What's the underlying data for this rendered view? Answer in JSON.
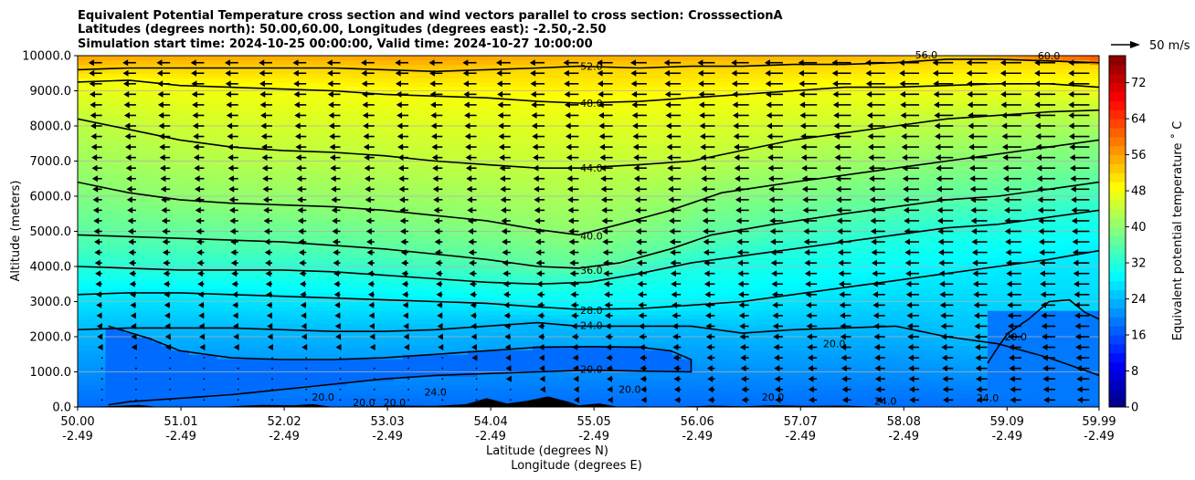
{
  "chart_data": {
    "type": "heatmap",
    "title_lines": [
      "Equivalent Potential Temperature cross section and wind vectors parallel to cross section: CrosssectionA",
      "Latitudes (degrees north): 50.00,60.00, Longitudes (degrees east): -2.50,-2.50",
      "Simulation start time: 2024-10-25 00:00:00, Valid time: 2024-10-27 10:00:00"
    ],
    "xlabel_lat": "Latitude (degrees N)",
    "xlabel_lon": "Longitude (degrees E)",
    "ylabel": "Altitude (meters)",
    "colorbar_label": "Equivalent potential temperature ˚ C",
    "quiver_key_label": "50 m/s",
    "xlim": [
      50.0,
      59.99
    ],
    "ylim": [
      0,
      10000
    ],
    "x_ticks": [
      {
        "lat": "50.00",
        "lon": "-2.49",
        "value": 50.0
      },
      {
        "lat": "51.01",
        "lon": "-2.49",
        "value": 51.01
      },
      {
        "lat": "52.02",
        "lon": "-2.49",
        "value": 52.02
      },
      {
        "lat": "53.03",
        "lon": "-2.49",
        "value": 53.03
      },
      {
        "lat": "54.04",
        "lon": "-2.49",
        "value": 54.04
      },
      {
        "lat": "55.05",
        "lon": "-2.49",
        "value": 55.05
      },
      {
        "lat": "56.06",
        "lon": "-2.49",
        "value": 56.06
      },
      {
        "lat": "57.07",
        "lon": "-2.49",
        "value": 57.07
      },
      {
        "lat": "58.08",
        "lon": "-2.49",
        "value": 58.08
      },
      {
        "lat": "59.09",
        "lon": "-2.49",
        "value": 59.09
      },
      {
        "lat": "59.99",
        "lon": "-2.49",
        "value": 59.99
      }
    ],
    "y_ticks": [
      {
        "label": "0.0",
        "value": 0
      },
      {
        "label": "1000.0",
        "value": 1000
      },
      {
        "label": "2000.0",
        "value": 2000
      },
      {
        "label": "3000.0",
        "value": 3000
      },
      {
        "label": "4000.0",
        "value": 4000
      },
      {
        "label": "5000.0",
        "value": 5000
      },
      {
        "label": "6000.0",
        "value": 6000
      },
      {
        "label": "7000.0",
        "value": 7000
      },
      {
        "label": "8000.0",
        "value": 8000
      },
      {
        "label": "9000.0",
        "value": 9000
      },
      {
        "label": "10000.0",
        "value": 10000
      }
    ],
    "colorbar_ticks": [
      {
        "label": "0",
        "value": 0
      },
      {
        "label": "8",
        "value": 8
      },
      {
        "label": "16",
        "value": 16
      },
      {
        "label": "24",
        "value": 24
      },
      {
        "label": "32",
        "value": 32
      },
      {
        "label": "40",
        "value": 40
      },
      {
        "label": "48",
        "value": 48
      },
      {
        "label": "56",
        "value": 56
      },
      {
        "label": "64",
        "value": 64
      },
      {
        "label": "72",
        "value": 72
      }
    ],
    "colorbar_range": [
      0,
      78
    ],
    "grid": "horizontal",
    "contours": [
      {
        "level": 20,
        "label": "20.0",
        "label_at": [
          54.9,
          1080
        ],
        "points": [
          [
            50.3,
            2300
          ],
          [
            50.7,
            1950
          ],
          [
            51.0,
            1600
          ],
          [
            51.5,
            1400
          ],
          [
            52.0,
            1350
          ],
          [
            52.5,
            1350
          ],
          [
            53.0,
            1400
          ],
          [
            53.5,
            1500
          ],
          [
            54.0,
            1600
          ],
          [
            54.5,
            1700
          ],
          [
            55.0,
            1720
          ],
          [
            55.5,
            1700
          ],
          [
            55.8,
            1600
          ],
          [
            56.0,
            1350
          ],
          [
            56.0,
            1000
          ],
          [
            55.5,
            1020
          ],
          [
            55.0,
            1050
          ],
          [
            54.5,
            1000
          ],
          [
            54.0,
            950
          ],
          [
            53.5,
            900
          ],
          [
            53.0,
            800
          ],
          [
            52.5,
            650
          ],
          [
            52.0,
            500
          ],
          [
            51.5,
            350
          ],
          [
            51.0,
            250
          ],
          [
            50.5,
            150
          ],
          [
            50.3,
            60
          ]
        ]
      },
      {
        "level": 20,
        "label": "20.0",
        "label_at": [
          59.05,
          2000
        ],
        "points": [
          [
            58.9,
            1250
          ],
          [
            59.0,
            1700
          ],
          [
            59.1,
            2100
          ],
          [
            59.3,
            2500
          ],
          [
            59.5,
            3000
          ],
          [
            59.7,
            3050
          ],
          [
            59.85,
            2700
          ],
          [
            59.99,
            2500
          ]
        ]
      },
      {
        "level": 24,
        "label": "24.0",
        "label_at": [
          54.9,
          2320
        ],
        "points": [
          [
            50.0,
            2200
          ],
          [
            50.5,
            2250
          ],
          [
            51.0,
            2250
          ],
          [
            51.5,
            2250
          ],
          [
            52.0,
            2200
          ],
          [
            52.5,
            2150
          ],
          [
            53.0,
            2150
          ],
          [
            53.5,
            2200
          ],
          [
            54.0,
            2300
          ],
          [
            54.5,
            2400
          ],
          [
            54.9,
            2300
          ],
          [
            55.5,
            2300
          ],
          [
            56.0,
            2300
          ],
          [
            56.5,
            2100
          ],
          [
            57.0,
            2200
          ],
          [
            57.5,
            2250
          ],
          [
            58.0,
            2300
          ],
          [
            58.5,
            2000
          ],
          [
            59.0,
            1800
          ],
          [
            59.5,
            1400
          ],
          [
            59.99,
            900
          ]
        ]
      },
      {
        "level": 28,
        "label": "28.0",
        "label_at": [
          54.9,
          2750
        ],
        "points": [
          [
            50.0,
            3200
          ],
          [
            50.5,
            3250
          ],
          [
            51.0,
            3250
          ],
          [
            51.5,
            3200
          ],
          [
            52.0,
            3150
          ],
          [
            52.5,
            3100
          ],
          [
            53.0,
            3050
          ],
          [
            53.5,
            3000
          ],
          [
            54.0,
            2950
          ],
          [
            54.5,
            2850
          ],
          [
            54.9,
            2780
          ],
          [
            55.5,
            2800
          ],
          [
            56.0,
            2900
          ],
          [
            56.5,
            3000
          ],
          [
            57.0,
            3200
          ],
          [
            57.5,
            3400
          ],
          [
            58.0,
            3600
          ],
          [
            58.5,
            3800
          ],
          [
            59.0,
            4000
          ],
          [
            59.5,
            4200
          ],
          [
            59.99,
            4450
          ]
        ]
      },
      {
        "level": 32,
        "label": "",
        "label_at": [
          0,
          0
        ],
        "points": [
          [
            50.0,
            4000
          ],
          [
            50.5,
            3950
          ],
          [
            51.0,
            3900
          ],
          [
            51.5,
            3900
          ],
          [
            52.0,
            3900
          ],
          [
            52.5,
            3850
          ],
          [
            53.0,
            3750
          ],
          [
            53.5,
            3650
          ],
          [
            54.0,
            3550
          ],
          [
            54.5,
            3500
          ],
          [
            55.0,
            3550
          ],
          [
            55.5,
            3800
          ],
          [
            56.0,
            4100
          ],
          [
            56.5,
            4300
          ],
          [
            57.0,
            4500
          ],
          [
            57.5,
            4700
          ],
          [
            58.0,
            4900
          ],
          [
            58.5,
            5100
          ],
          [
            59.0,
            5200
          ],
          [
            59.5,
            5400
          ],
          [
            59.99,
            5600
          ]
        ]
      },
      {
        "level": 36,
        "label": "36.0",
        "label_at": [
          54.9,
          3900
        ],
        "points": [
          [
            50.0,
            4900
          ],
          [
            50.5,
            4850
          ],
          [
            51.0,
            4800
          ],
          [
            51.5,
            4750
          ],
          [
            52.0,
            4700
          ],
          [
            52.5,
            4600
          ],
          [
            53.0,
            4500
          ],
          [
            53.5,
            4350
          ],
          [
            54.0,
            4200
          ],
          [
            54.5,
            4000
          ],
          [
            54.9,
            3950
          ],
          [
            55.3,
            4100
          ],
          [
            55.8,
            4500
          ],
          [
            56.2,
            4900
          ],
          [
            56.8,
            5200
          ],
          [
            57.5,
            5500
          ],
          [
            58.0,
            5700
          ],
          [
            58.5,
            5900
          ],
          [
            59.0,
            6000
          ],
          [
            59.5,
            6200
          ],
          [
            59.99,
            6400
          ]
        ]
      },
      {
        "level": 40,
        "label": "40.0",
        "label_at": [
          54.9,
          4870
        ],
        "points": [
          [
            50.0,
            6400
          ],
          [
            50.5,
            6100
          ],
          [
            51.0,
            5900
          ],
          [
            51.5,
            5800
          ],
          [
            52.0,
            5750
          ],
          [
            52.5,
            5700
          ],
          [
            53.0,
            5600
          ],
          [
            53.5,
            5450
          ],
          [
            54.0,
            5300
          ],
          [
            54.5,
            5050
          ],
          [
            54.9,
            4900
          ],
          [
            55.3,
            5200
          ],
          [
            55.8,
            5600
          ],
          [
            56.3,
            6100
          ],
          [
            57.0,
            6400
          ],
          [
            57.5,
            6600
          ],
          [
            58.0,
            6800
          ],
          [
            58.5,
            7000
          ],
          [
            59.0,
            7200
          ],
          [
            59.5,
            7400
          ],
          [
            59.99,
            7600
          ]
        ]
      },
      {
        "level": 44,
        "label": "44.0",
        "label_at": [
          54.9,
          6800
        ],
        "points": [
          [
            50.0,
            8200
          ],
          [
            50.5,
            7900
          ],
          [
            51.0,
            7600
          ],
          [
            51.5,
            7400
          ],
          [
            52.0,
            7300
          ],
          [
            52.5,
            7250
          ],
          [
            53.0,
            7150
          ],
          [
            53.5,
            7000
          ],
          [
            54.0,
            6900
          ],
          [
            54.5,
            6800
          ],
          [
            54.9,
            6800
          ],
          [
            55.5,
            6900
          ],
          [
            56.0,
            7000
          ],
          [
            56.5,
            7300
          ],
          [
            57.0,
            7600
          ],
          [
            57.5,
            7800
          ],
          [
            58.0,
            8000
          ],
          [
            58.5,
            8200
          ],
          [
            59.0,
            8300
          ],
          [
            59.5,
            8400
          ],
          [
            59.99,
            8450
          ]
        ]
      },
      {
        "level": 48,
        "label": "48.0",
        "label_at": [
          54.9,
          8650
        ],
        "points": [
          [
            50.0,
            9250
          ],
          [
            50.5,
            9300
          ],
          [
            51.0,
            9150
          ],
          [
            51.5,
            9100
          ],
          [
            52.0,
            9050
          ],
          [
            52.5,
            9000
          ],
          [
            53.0,
            8900
          ],
          [
            53.5,
            8850
          ],
          [
            54.0,
            8800
          ],
          [
            54.5,
            8700
          ],
          [
            54.9,
            8650
          ],
          [
            55.5,
            8700
          ],
          [
            56.0,
            8800
          ],
          [
            56.5,
            8900
          ],
          [
            57.0,
            9000
          ],
          [
            57.5,
            9100
          ],
          [
            58.0,
            9100
          ],
          [
            58.5,
            9150
          ],
          [
            59.0,
            9200
          ],
          [
            59.5,
            9200
          ],
          [
            59.99,
            9100
          ]
        ]
      },
      {
        "level": 52,
        "label": "52.0",
        "label_at": [
          54.9,
          9700
        ],
        "points": [
          [
            50.0,
            9600
          ],
          [
            50.5,
            9650
          ],
          [
            51.0,
            9650
          ],
          [
            51.5,
            9650
          ],
          [
            52.0,
            9650
          ],
          [
            52.5,
            9650
          ],
          [
            53.0,
            9600
          ],
          [
            53.5,
            9550
          ],
          [
            54.0,
            9600
          ],
          [
            54.5,
            9650
          ],
          [
            54.9,
            9700
          ],
          [
            55.5,
            9650
          ],
          [
            56.0,
            9700
          ],
          [
            56.5,
            9700
          ],
          [
            57.0,
            9750
          ],
          [
            57.5,
            9750
          ],
          [
            58.0,
            9800
          ],
          [
            58.5,
            9900
          ],
          [
            59.0,
            9900
          ],
          [
            59.5,
            9850
          ],
          [
            59.99,
            9800
          ]
        ]
      }
    ],
    "extra_contour_labels": [
      {
        "text": "24.0",
        "at": [
          53.5,
          330
        ]
      },
      {
        "text": "24.0",
        "at": [
          57.9,
          70
        ]
      },
      {
        "text": "24.0",
        "at": [
          58.9,
          150
        ]
      },
      {
        "text": "20.0",
        "at": [
          52.4,
          180
        ]
      },
      {
        "text": "20.0",
        "at": [
          52.8,
          30
        ]
      },
      {
        "text": "20.0",
        "at": [
          53.1,
          20
        ]
      },
      {
        "text": "20.0",
        "at": [
          57.4,
          1700
        ]
      },
      {
        "text": "20.0",
        "at": [
          56.8,
          180
        ]
      },
      {
        "text": "20.0",
        "at": [
          55.4,
          400
        ]
      },
      {
        "text": "56.0",
        "at": [
          58.3,
          9920
        ]
      },
      {
        "text": "60.0",
        "at": [
          59.5,
          9900
        ]
      }
    ],
    "terrain": [
      [
        50.0,
        0
      ],
      [
        50.3,
        20
      ],
      [
        50.6,
        60
      ],
      [
        50.8,
        0
      ],
      [
        51.3,
        0
      ],
      [
        51.5,
        20
      ],
      [
        51.8,
        60
      ],
      [
        52.1,
        50
      ],
      [
        52.3,
        80
      ],
      [
        52.5,
        0
      ],
      [
        52.8,
        20
      ],
      [
        53.1,
        40
      ],
      [
        53.5,
        30
      ],
      [
        53.8,
        80
      ],
      [
        54.0,
        250
      ],
      [
        54.2,
        100
      ],
      [
        54.4,
        180
      ],
      [
        54.6,
        300
      ],
      [
        54.8,
        150
      ],
      [
        54.9,
        50
      ],
      [
        55.1,
        100
      ],
      [
        55.3,
        0
      ],
      [
        55.5,
        20
      ],
      [
        55.8,
        0
      ],
      [
        56.2,
        40
      ],
      [
        56.5,
        20
      ],
      [
        56.8,
        50
      ],
      [
        57.1,
        30
      ],
      [
        57.5,
        40
      ],
      [
        57.9,
        0
      ],
      [
        59.99,
        0
      ]
    ],
    "wind_field": {
      "rows_m": [
        200,
        500,
        800,
        1100,
        1400,
        1700,
        2000,
        2300,
        2600,
        2900,
        3200,
        3500,
        3800,
        4100,
        4400,
        4700,
        5000,
        5300,
        5600,
        5900,
        6200,
        6500,
        6800,
        7100,
        7400,
        7700,
        8000,
        8300,
        8600,
        8900,
        9200,
        9500,
        9800
      ],
      "columns": 30,
      "direction": "southward",
      "max_speed_ms": 25
    }
  }
}
